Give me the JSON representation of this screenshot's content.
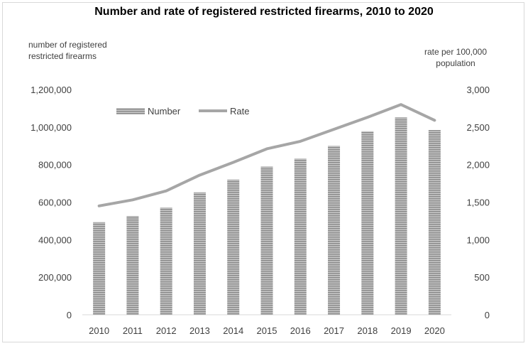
{
  "chart_data": {
    "type": "bar",
    "title": "Number and rate of registered restricted firearms, 2010 to 2020",
    "ylabel_left": "number of registered restricted firearms",
    "ylabel_right": "rate per 100,000 population",
    "categories": [
      "2010",
      "2011",
      "2012",
      "2013",
      "2014",
      "2015",
      "2016",
      "2017",
      "2018",
      "2019",
      "2020"
    ],
    "series": [
      {
        "name": "Number",
        "kind": "bar",
        "axis": "left",
        "values": [
          493000,
          526000,
          571000,
          652000,
          720000,
          789000,
          832000,
          900000,
          978000,
          1051000,
          984000
        ]
      },
      {
        "name": "Rate",
        "kind": "line",
        "axis": "right",
        "values": [
          1450,
          1530,
          1650,
          1860,
          2030,
          2210,
          2310,
          2470,
          2630,
          2800,
          2590
        ]
      }
    ],
    "ylim_left": [
      0,
      1200000
    ],
    "ylim_right": [
      0,
      3000
    ],
    "yticks_left": [
      "0",
      "200,000",
      "400,000",
      "600,000",
      "800,000",
      "1,000,000",
      "1,200,000"
    ],
    "yticks_right": [
      "0",
      "500",
      "1,000",
      "1,500",
      "2,000",
      "2,500",
      "3,000"
    ],
    "legend": [
      "Number",
      "Rate"
    ],
    "legend_position": "top-left",
    "grid": false,
    "colors": {
      "bar": "#9e9e9e",
      "line": "#a6a6a6"
    }
  }
}
